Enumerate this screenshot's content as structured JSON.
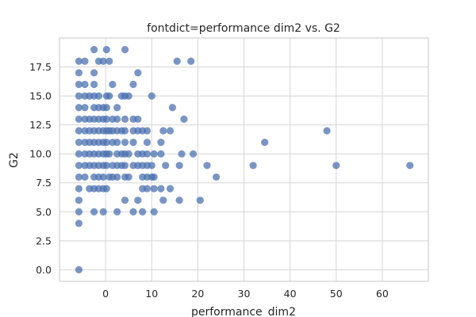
{
  "chart_data": {
    "type": "scatter",
    "title": "fontdict=performance dim2 vs. G2",
    "xlabel": "performance_dim2",
    "ylabel": "G2",
    "xlim": [
      -10,
      70
    ],
    "ylim": [
      -1,
      20
    ],
    "xticks": [
      0,
      10,
      20,
      30,
      40,
      50,
      60
    ],
    "yticks": [
      0.0,
      2.5,
      5.0,
      7.5,
      10.0,
      12.5,
      15.0,
      17.5
    ],
    "xtick_labels": [
      "0",
      "10",
      "20",
      "30",
      "40",
      "50",
      "60"
    ],
    "ytick_labels": [
      "0.0",
      "2.5",
      "5.0",
      "7.5",
      "10.0",
      "12.5",
      "15.0",
      "17.5"
    ],
    "grid": true,
    "marker_color": "#4c72b0",
    "marker_alpha": 0.75,
    "points": [
      [
        -5.8,
        0
      ],
      [
        -5.8,
        4
      ],
      [
        -5.8,
        5
      ],
      [
        -5.8,
        6
      ],
      [
        -5.8,
        7
      ],
      [
        -5.8,
        8
      ],
      [
        -5.8,
        9
      ],
      [
        -5.8,
        10
      ],
      [
        -5.8,
        11
      ],
      [
        -5.8,
        12
      ],
      [
        -5.8,
        13
      ],
      [
        -5.8,
        14
      ],
      [
        -5.8,
        15
      ],
      [
        -5.8,
        16
      ],
      [
        -5.8,
        17
      ],
      [
        -5.8,
        18
      ],
      [
        -4.5,
        8
      ],
      [
        -4.5,
        9
      ],
      [
        -4.5,
        10
      ],
      [
        -4.5,
        11
      ],
      [
        -4.5,
        12
      ],
      [
        -4.5,
        13
      ],
      [
        -4.5,
        14
      ],
      [
        -4.5,
        15
      ],
      [
        -4.5,
        16
      ],
      [
        -4.5,
        18
      ],
      [
        -3.5,
        7
      ],
      [
        -3.5,
        9
      ],
      [
        -3.5,
        10
      ],
      [
        -3.5,
        11
      ],
      [
        -3.5,
        12
      ],
      [
        -3.5,
        13
      ],
      [
        -3.5,
        15
      ],
      [
        -2.5,
        5
      ],
      [
        -2.5,
        7
      ],
      [
        -2.5,
        8
      ],
      [
        -2.5,
        9
      ],
      [
        -2.5,
        10
      ],
      [
        -2.5,
        11
      ],
      [
        -2.5,
        12
      ],
      [
        -2.5,
        13
      ],
      [
        -2.5,
        14
      ],
      [
        -2.5,
        15
      ],
      [
        -2.5,
        16
      ],
      [
        -2.5,
        17
      ],
      [
        -2.5,
        19
      ],
      [
        -1.5,
        7
      ],
      [
        -1.5,
        8
      ],
      [
        -1.5,
        9
      ],
      [
        -1.5,
        10
      ],
      [
        -1.5,
        11
      ],
      [
        -1.5,
        12
      ],
      [
        -1.5,
        13
      ],
      [
        -1.5,
        14
      ],
      [
        -1.5,
        15
      ],
      [
        -1.5,
        18
      ],
      [
        -0.5,
        5
      ],
      [
        -0.5,
        7
      ],
      [
        -0.5,
        8
      ],
      [
        -0.5,
        9
      ],
      [
        -0.5,
        10
      ],
      [
        -0.5,
        11
      ],
      [
        -0.5,
        12
      ],
      [
        -0.5,
        13
      ],
      [
        -0.5,
        14
      ],
      [
        -0.5,
        18
      ],
      [
        0.2,
        7
      ],
      [
        0.2,
        9
      ],
      [
        0.2,
        10
      ],
      [
        0.2,
        11
      ],
      [
        0.2,
        12
      ],
      [
        0.2,
        13
      ],
      [
        0.2,
        14
      ],
      [
        0.2,
        15
      ],
      [
        0.2,
        19
      ],
      [
        0.8,
        8
      ],
      [
        0.8,
        10
      ],
      [
        0.8,
        12
      ],
      [
        0.8,
        15
      ],
      [
        0.8,
        18
      ],
      [
        1.5,
        8
      ],
      [
        1.5,
        9
      ],
      [
        1.5,
        11
      ],
      [
        1.5,
        12
      ],
      [
        1.5,
        13
      ],
      [
        1.5,
        16
      ],
      [
        2.5,
        5
      ],
      [
        2.5,
        8
      ],
      [
        2.5,
        9
      ],
      [
        2.5,
        10
      ],
      [
        2.5,
        11
      ],
      [
        2.5,
        12
      ],
      [
        2.5,
        13
      ],
      [
        2.5,
        14
      ],
      [
        3.5,
        9
      ],
      [
        3.5,
        10
      ],
      [
        3.5,
        12
      ],
      [
        3.5,
        15
      ],
      [
        4.2,
        6
      ],
      [
        4.2,
        8
      ],
      [
        4.2,
        9
      ],
      [
        4.2,
        10
      ],
      [
        4.2,
        11
      ],
      [
        4.2,
        12
      ],
      [
        4.2,
        13
      ],
      [
        4.2,
        15
      ],
      [
        4.2,
        19
      ],
      [
        5,
        8
      ],
      [
        5,
        10
      ],
      [
        5,
        15
      ],
      [
        6,
        5
      ],
      [
        6,
        9
      ],
      [
        6,
        11
      ],
      [
        6,
        12
      ],
      [
        6,
        13
      ],
      [
        6,
        16
      ],
      [
        7,
        6
      ],
      [
        7,
        9
      ],
      [
        7,
        10
      ],
      [
        7,
        12
      ],
      [
        7,
        13
      ],
      [
        7,
        17
      ],
      [
        8,
        5
      ],
      [
        8,
        7
      ],
      [
        8,
        8
      ],
      [
        8,
        9
      ],
      [
        8,
        10
      ],
      [
        8,
        12
      ],
      [
        9,
        7
      ],
      [
        9,
        8
      ],
      [
        9,
        9
      ],
      [
        9,
        10
      ],
      [
        9,
        11
      ],
      [
        9,
        12
      ],
      [
        10,
        8
      ],
      [
        10,
        9
      ],
      [
        10,
        15
      ],
      [
        10.5,
        5
      ],
      [
        10.5,
        7
      ],
      [
        10.5,
        8
      ],
      [
        10.5,
        10
      ],
      [
        12,
        7
      ],
      [
        12,
        10
      ],
      [
        12,
        11
      ],
      [
        12.5,
        6
      ],
      [
        12.5,
        12
      ],
      [
        13,
        9
      ],
      [
        14,
        7
      ],
      [
        14,
        12
      ],
      [
        14.5,
        14
      ],
      [
        15.5,
        18
      ],
      [
        16,
        6
      ],
      [
        16,
        9
      ],
      [
        16.5,
        10
      ],
      [
        17,
        13
      ],
      [
        18.5,
        18
      ],
      [
        19,
        10
      ],
      [
        20.5,
        6
      ],
      [
        22,
        9
      ],
      [
        24,
        8
      ],
      [
        32,
        9
      ],
      [
        34.5,
        11
      ],
      [
        48,
        12
      ],
      [
        50,
        9
      ],
      [
        66,
        9
      ]
    ]
  }
}
